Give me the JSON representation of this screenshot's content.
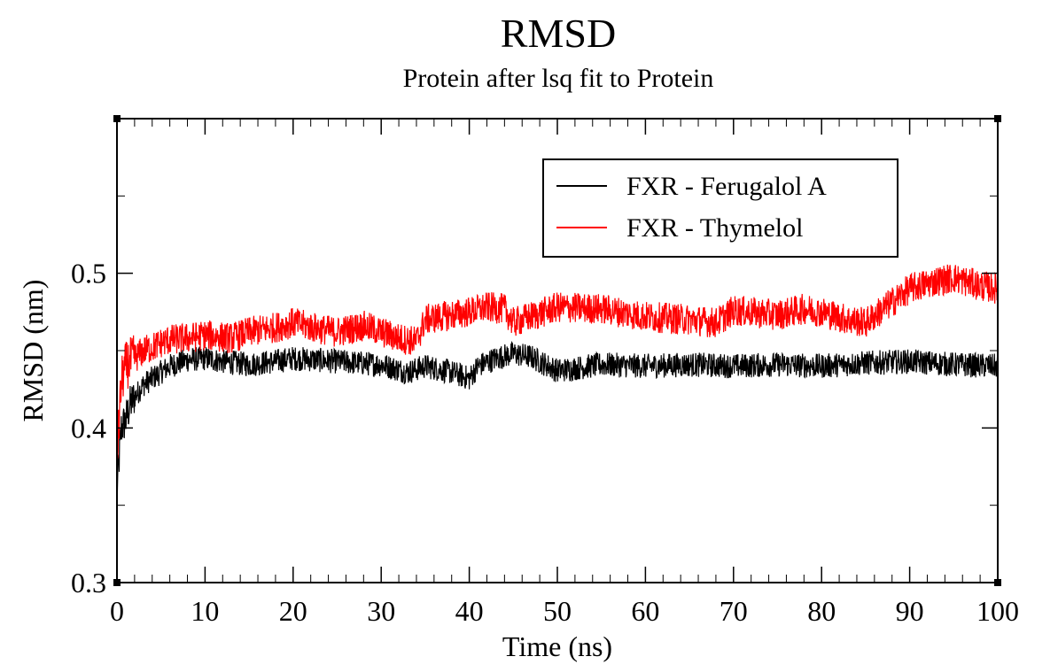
{
  "chart_data": {
    "type": "line",
    "title": "RMSD",
    "subtitle": "Protein after lsq fit to Protein",
    "xlabel": "Time (ns)",
    "ylabel": "RMSD (nm)",
    "xlim": [
      0,
      100
    ],
    "ylim": [
      0.3,
      0.6
    ],
    "x_ticks": [
      0,
      10,
      20,
      30,
      40,
      50,
      60,
      70,
      80,
      90,
      100
    ],
    "x_tick_labels": [
      "0",
      "10",
      "20",
      "30",
      "40",
      "50",
      "60",
      "70",
      "80",
      "90",
      "100"
    ],
    "y_ticks": [
      0.3,
      0.4,
      0.5
    ],
    "y_tick_labels": [
      "0.3",
      "0.4",
      "0.5"
    ],
    "grid": false,
    "legend_position": "top-right",
    "series": [
      {
        "name": "FXR - Ferugalol A",
        "color": "#000000",
        "x": [
          0,
          0.5,
          1,
          1.5,
          2,
          3,
          4,
          5,
          6,
          7,
          8,
          10,
          12,
          15,
          18,
          20,
          25,
          30,
          33,
          35,
          38,
          40,
          41,
          43,
          45,
          47,
          50,
          55,
          60,
          65,
          70,
          75,
          80,
          85,
          90,
          95,
          100
        ],
        "y": [
          0.36,
          0.4,
          0.405,
          0.415,
          0.42,
          0.428,
          0.432,
          0.436,
          0.44,
          0.442,
          0.444,
          0.445,
          0.443,
          0.441,
          0.443,
          0.445,
          0.443,
          0.441,
          0.436,
          0.44,
          0.436,
          0.432,
          0.44,
          0.445,
          0.448,
          0.446,
          0.437,
          0.441,
          0.44,
          0.441,
          0.44,
          0.441,
          0.44,
          0.442,
          0.443,
          0.441,
          0.44
        ],
        "noise": 0.008
      },
      {
        "name": "FXR - Thymelol",
        "color": "#ff0000",
        "x": [
          0,
          0.5,
          1,
          2,
          3,
          4,
          5,
          6,
          8,
          10,
          13,
          15,
          18,
          20,
          23,
          25,
          28,
          30,
          32,
          34,
          35,
          37,
          40,
          42,
          44,
          45,
          47,
          50,
          55,
          60,
          65,
          68,
          70,
          75,
          78,
          80,
          83,
          85,
          87,
          90,
          93,
          95,
          98,
          100
        ],
        "y": [
          0.38,
          0.43,
          0.44,
          0.445,
          0.45,
          0.452,
          0.455,
          0.457,
          0.458,
          0.46,
          0.458,
          0.462,
          0.465,
          0.468,
          0.464,
          0.462,
          0.466,
          0.462,
          0.458,
          0.456,
          0.47,
          0.472,
          0.475,
          0.478,
          0.477,
          0.468,
          0.472,
          0.478,
          0.477,
          0.472,
          0.47,
          0.468,
          0.476,
          0.473,
          0.477,
          0.475,
          0.47,
          0.468,
          0.477,
          0.49,
          0.495,
          0.497,
          0.492,
          0.49
        ],
        "noise": 0.01
      }
    ]
  }
}
